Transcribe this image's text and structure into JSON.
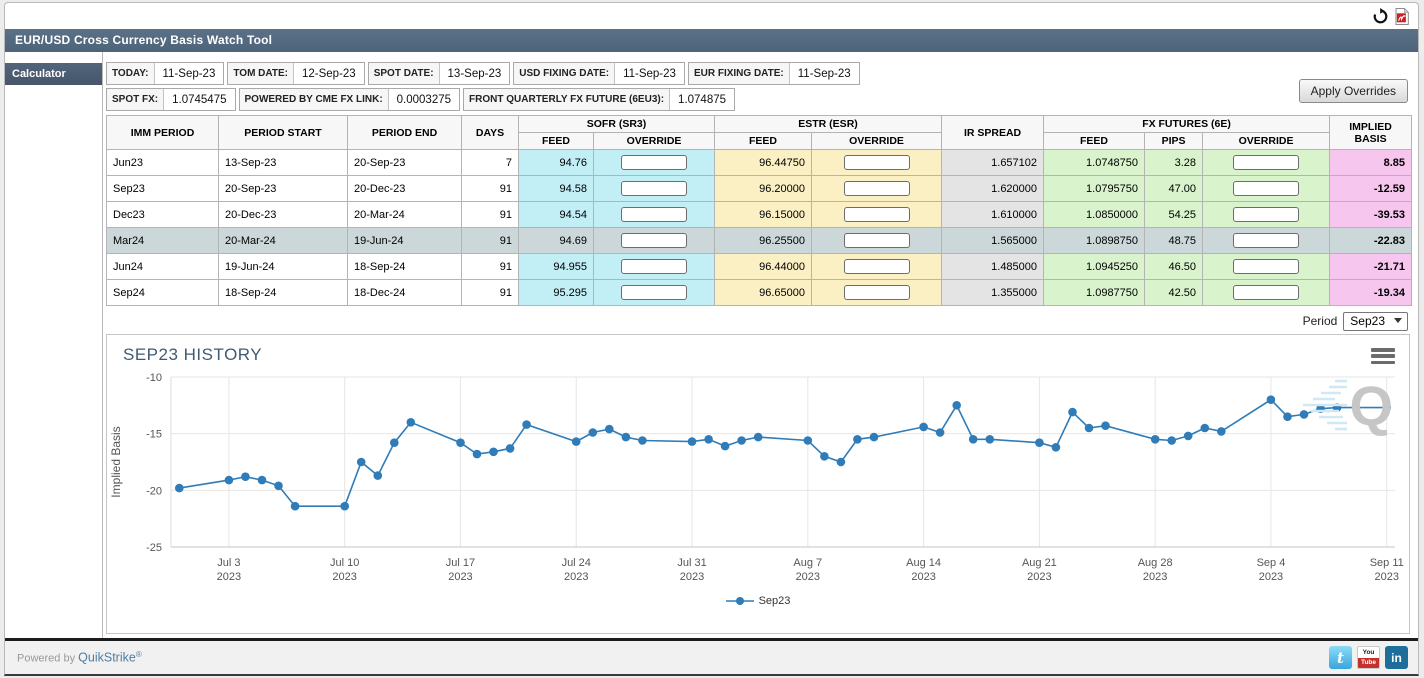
{
  "header": {
    "title": "EUR/USD Cross Currency Basis Watch Tool"
  },
  "icons": {
    "refresh": "circular-arrow",
    "pdf": "pdf-report",
    "menu": "hamburger",
    "dropdown_chevron": "down-triangle",
    "twitter_glyph": "t",
    "youtube_glyph_top": "You",
    "youtube_glyph_bottom": "Tube",
    "linkedin_glyph": "in"
  },
  "sidebar": {
    "tab_label": "Calculator"
  },
  "toolbar": {
    "apply_button_label": "Apply Overrides",
    "date_fields": [
      {
        "label": "TODAY:",
        "value": "11-Sep-23"
      },
      {
        "label": "TOM DATE:",
        "value": "12-Sep-23"
      },
      {
        "label": "SPOT DATE:",
        "value": "13-Sep-23"
      },
      {
        "label": "USD FIXING DATE:",
        "value": "11-Sep-23"
      },
      {
        "label": "EUR FIXING DATE:",
        "value": "11-Sep-23"
      }
    ],
    "fx_fields": [
      {
        "label": "SPOT FX:",
        "value": "1.0745475"
      },
      {
        "label": "POWERED BY CME FX LINK:",
        "value": "0.0003275"
      },
      {
        "label": "FRONT QUARTERLY FX FUTURE (6EU3):",
        "value": "1.074875"
      }
    ]
  },
  "table": {
    "headers": {
      "imm_period": "IMM PERIOD",
      "period_start": "PERIOD START",
      "period_end": "PERIOD END",
      "days": "DAYS",
      "sofr_group": "SOFR (SR3)",
      "estr_group": "ESTR (ESR)",
      "ir_spread": "IR SPREAD",
      "fx_group": "FX FUTURES (6E)",
      "implied_basis": "IMPLIED BASIS",
      "feed": "FEED",
      "override": "OVERRIDE",
      "pips": "PIPS"
    },
    "rows": [
      {
        "period": "Jun23",
        "start": "13-Sep-23",
        "end": "20-Sep-23",
        "days": "7",
        "sofr_feed": "94.76",
        "sofr_override": "",
        "estr_feed": "96.44750",
        "estr_override": "",
        "ir_spread": "1.657102",
        "fx_feed": "1.0748750",
        "pips": "3.28",
        "fx_override": "",
        "implied_basis": "8.85",
        "highlighted": false
      },
      {
        "period": "Sep23",
        "start": "20-Sep-23",
        "end": "20-Dec-23",
        "days": "91",
        "sofr_feed": "94.58",
        "sofr_override": "",
        "estr_feed": "96.20000",
        "estr_override": "",
        "ir_spread": "1.620000",
        "fx_feed": "1.0795750",
        "pips": "47.00",
        "fx_override": "",
        "implied_basis": "-12.59",
        "highlighted": false
      },
      {
        "period": "Dec23",
        "start": "20-Dec-23",
        "end": "20-Mar-24",
        "days": "91",
        "sofr_feed": "94.54",
        "sofr_override": "",
        "estr_feed": "96.15000",
        "estr_override": "",
        "ir_spread": "1.610000",
        "fx_feed": "1.0850000",
        "pips": "54.25",
        "fx_override": "",
        "implied_basis": "-39.53",
        "highlighted": false
      },
      {
        "period": "Mar24",
        "start": "20-Mar-24",
        "end": "19-Jun-24",
        "days": "91",
        "sofr_feed": "94.69",
        "sofr_override": "",
        "estr_feed": "96.25500",
        "estr_override": "",
        "ir_spread": "1.565000",
        "fx_feed": "1.0898750",
        "pips": "48.75",
        "fx_override": "",
        "implied_basis": "-22.83",
        "highlighted": true
      },
      {
        "period": "Jun24",
        "start": "19-Jun-24",
        "end": "18-Sep-24",
        "days": "91",
        "sofr_feed": "94.955",
        "sofr_override": "",
        "estr_feed": "96.44000",
        "estr_override": "",
        "ir_spread": "1.485000",
        "fx_feed": "1.0945250",
        "pips": "46.50",
        "fx_override": "",
        "implied_basis": "-21.71",
        "highlighted": false
      },
      {
        "period": "Sep24",
        "start": "18-Sep-24",
        "end": "18-Dec-24",
        "days": "91",
        "sofr_feed": "95.295",
        "sofr_override": "",
        "estr_feed": "96.65000",
        "estr_override": "",
        "ir_spread": "1.355000",
        "fx_feed": "1.0987750",
        "pips": "42.50",
        "fx_override": "",
        "implied_basis": "-19.34",
        "highlighted": false
      }
    ]
  },
  "period_selector": {
    "label": "Period",
    "value": "Sep23"
  },
  "chart_data": {
    "type": "line",
    "title": "SEP23 HISTORY",
    "xlabel": "",
    "ylabel": "Implied Basis",
    "ylim": [
      -25,
      -10
    ],
    "yticks": [
      -10,
      -15,
      -20,
      -25
    ],
    "grid": true,
    "legend_position": "bottom",
    "x_range": [
      -0.5,
      73.5
    ],
    "x_ticks": [
      {
        "day": 3,
        "label": "Jul 3",
        "year": "2023"
      },
      {
        "day": 10,
        "label": "Jul 10",
        "year": "2023"
      },
      {
        "day": 17,
        "label": "Jul 17",
        "year": "2023"
      },
      {
        "day": 24,
        "label": "Jul 24",
        "year": "2023"
      },
      {
        "day": 31,
        "label": "Jul 31",
        "year": "2023"
      },
      {
        "day": 38,
        "label": "Aug 7",
        "year": "2023"
      },
      {
        "day": 45,
        "label": "Aug 14",
        "year": "2023"
      },
      {
        "day": 52,
        "label": "Aug 21",
        "year": "2023"
      },
      {
        "day": 59,
        "label": "Aug 28",
        "year": "2023"
      },
      {
        "day": 66,
        "label": "Sep 4",
        "year": "2023"
      },
      {
        "day": 73,
        "label": "Sep 11",
        "year": "2023"
      }
    ],
    "series": [
      {
        "name": "Sep23",
        "color": "#2f7cb8",
        "x_days": [
          0,
          3,
          4,
          5,
          6,
          7,
          10,
          11,
          12,
          13,
          14,
          17,
          18,
          19,
          20,
          21,
          24,
          25,
          26,
          27,
          28,
          31,
          32,
          33,
          34,
          35,
          38,
          39,
          40,
          41,
          42,
          45,
          46,
          47,
          48,
          49,
          52,
          53,
          54,
          55,
          56,
          59,
          60,
          61,
          62,
          63,
          66,
          67,
          68,
          69,
          70,
          73
        ],
        "values": [
          -19.8,
          -19.1,
          -18.8,
          -19.1,
          -19.6,
          -21.4,
          -21.4,
          -17.5,
          -18.7,
          -15.8,
          -14.0,
          -15.8,
          -16.8,
          -16.6,
          -16.3,
          -14.2,
          -15.7,
          -14.9,
          -14.6,
          -15.3,
          -15.6,
          -15.7,
          -15.5,
          -16.1,
          -15.6,
          -15.3,
          -15.6,
          -17.0,
          -17.5,
          -15.5,
          -15.3,
          -14.4,
          -14.9,
          -12.5,
          -15.5,
          -15.5,
          -15.8,
          -16.2,
          -13.1,
          -14.5,
          -14.3,
          -15.5,
          -15.6,
          -15.2,
          -14.5,
          -14.8,
          -12.0,
          -13.5,
          -13.3,
          -12.8,
          -12.7,
          -12.7
        ]
      }
    ]
  },
  "watermark": {
    "letter": "Q"
  },
  "footer": {
    "powered_by": "Powered by",
    "brand": "QuikStrike",
    "registered": "®"
  },
  "colors": {
    "titlebar": "#51687e",
    "tab": "#48596c",
    "sofr_bg": "#c2eef6",
    "estr_bg": "#fbefc4",
    "ir_bg": "#e4e4e4",
    "fx_bg": "#d9f3cd",
    "implied_bg": "#f6c6ee",
    "highlight_row": "#cbd7d8",
    "series": "#2f7cb8"
  }
}
